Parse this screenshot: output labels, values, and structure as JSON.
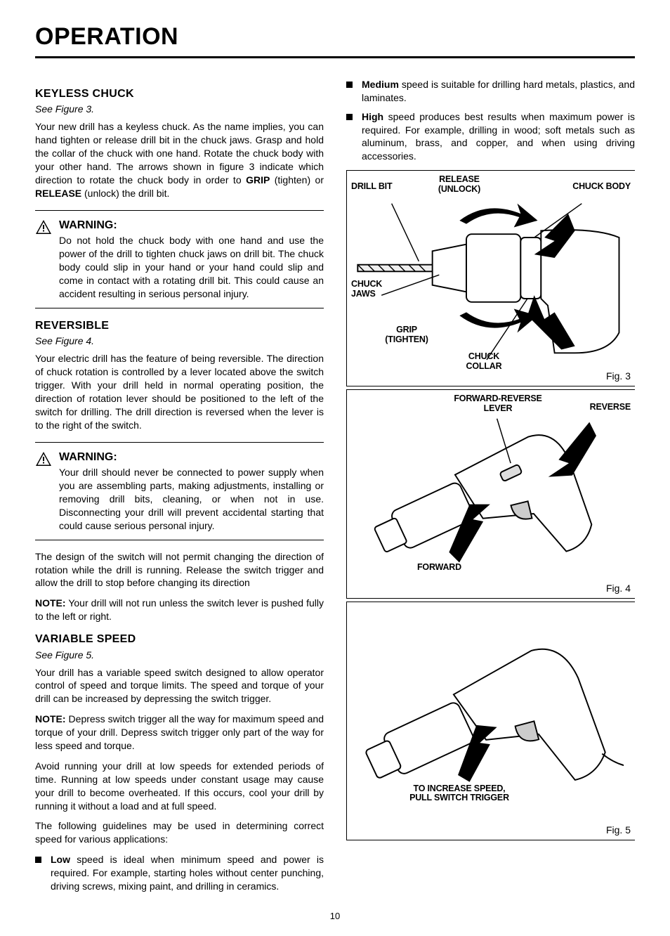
{
  "page_title": "OPERATION",
  "page_number": "10",
  "left_column": {
    "keyless_chuck": {
      "heading": "KEYLESS CHUCK",
      "see": "See Figure 3.",
      "para1_prefix": "Your new drill has a keyless chuck. As the name implies, you can hand tighten or release drill bit in the chuck jaws. Grasp and hold the collar of the chuck with one hand. Rotate the chuck body with your other hand. The arrows shown in figure 3 indicate which direction to rotate the chuck body in order to ",
      "grip_word": "GRIP",
      "grip_after": " (tighten) or ",
      "release_word": "RELEASE",
      "release_after": " (unlock) the drill bit.",
      "warning_title": "WARNING:",
      "warning_text": "Do not hold the chuck body with one hand and use the power of the drill to tighten chuck jaws on drill bit. The chuck body could slip in your hand or your hand could slip and come in contact with a rotating drill bit. This could cause an accident resulting in serious personal injury."
    },
    "reversible": {
      "heading": "REVERSIBLE",
      "see": "See Figure 4.",
      "para1": "Your electric drill has the feature of being reversible. The direction of chuck rotation is controlled by a lever located above the switch trigger. With your drill held in normal operating position, the direction of rotation lever should be positioned to the left of the switch for drilling. The drill direction is reversed when the lever is to the right of the switch.",
      "warning_title": "WARNING:",
      "warning_text": "Your drill should never be connected to power supply when you are assembling parts, making adjustments, installing or removing drill bits, cleaning, or when not in use. Disconnecting your drill will prevent accidental starting that could cause serious personal injury.",
      "para2": "The design of the switch will not permit changing the direction of rotation while the drill is running. Release the switch trigger and allow the drill to stop before changing its direction",
      "note_label": "NOTE:",
      "note_text": " Your drill will not run unless the switch lever is pushed fully to the left or right."
    },
    "variable_speed": {
      "heading": "VARIABLE SPEED",
      "see": "See Figure 5.",
      "para1": "Your drill has a variable speed switch designed to allow operator control of speed and torque limits. The speed and torque of your drill can be increased by depressing the switch trigger.",
      "note_label": "NOTE:",
      "note_text": " Depress switch trigger all the way for maximum speed and torque of your drill. Depress switch trigger only part of the way for less speed and torque.",
      "para2": "Avoid running your drill at low speeds for extended periods of time. Running at low speeds under constant usage may cause your drill to become overheated. If this occurs, cool your drill by running it without a load and at full speed.",
      "para3": "The following guidelines may be used in determining correct speed for various applications:",
      "low_label": "Low",
      "low_text": " speed is ideal when minimum speed and power is required. For example, starting holes without center punching, driving screws, mixing paint, and drilling in ceramics."
    }
  },
  "right_column": {
    "medium_label": "Medium",
    "medium_text": " speed is suitable for drilling hard metals, plastics, and laminates.",
    "high_label": "High",
    "high_text": " speed produces best results when maximum power is required. For example, drilling in wood; soft metals such as aluminum, brass, and copper, and when using driving accessories.",
    "fig3": {
      "caption": "Fig. 3",
      "labels": {
        "drill_bit": "DRILL BIT",
        "release": "RELEASE\n(UNLOCK)",
        "chuck_body": "CHUCK BODY",
        "chuck_jaws": "CHUCK\nJAWS",
        "grip": "GRIP\n(TIGHTEN)",
        "chuck_collar": "CHUCK\nCOLLAR"
      }
    },
    "fig4": {
      "caption": "Fig. 4",
      "labels": {
        "fwd_rev_lever": "FORWARD-REVERSE\nLEVER",
        "reverse": "REVERSE",
        "forward": "FORWARD"
      }
    },
    "fig5": {
      "caption": "Fig. 5",
      "labels": {
        "increase": "TO INCREASE SPEED,\nPULL SWITCH TRIGGER"
      }
    }
  }
}
